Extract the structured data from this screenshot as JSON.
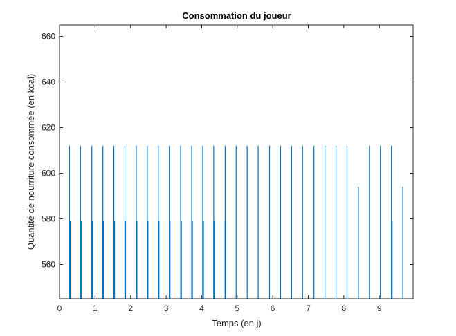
{
  "chart_data": {
    "type": "bar",
    "title": "Consommation du joueur",
    "xlabel": "Temps (en j)",
    "ylabel": "Quantité de nourriture consommée (en kcal)",
    "xlim": [
      0,
      9.95
    ],
    "ylim": [
      545,
      665
    ],
    "xticks": [
      0,
      1,
      2,
      3,
      4,
      5,
      6,
      7,
      8,
      9
    ],
    "yticks": [
      560,
      580,
      600,
      620,
      640,
      660
    ],
    "grid": false,
    "box": true,
    "bar_color": "#0072BD",
    "series": [
      {
        "x": [
          0.28,
          0.59,
          0.91,
          1.22,
          1.53,
          1.84,
          2.16,
          2.47,
          2.78,
          3.09,
          3.41,
          3.72,
          4.03,
          4.34,
          4.66,
          4.97,
          5.28,
          5.59,
          5.91,
          6.22,
          6.53,
          6.84,
          7.16,
          7.47,
          7.78,
          8.09,
          8.41,
          8.72,
          9.03,
          9.34,
          9.66
        ],
        "values": [
          612,
          612,
          612,
          612,
          612,
          612,
          612,
          612,
          612,
          612,
          612,
          612,
          612,
          612,
          612,
          612,
          612,
          612,
          612,
          612,
          612,
          612,
          612,
          612,
          612,
          612,
          594,
          612,
          612,
          612,
          594
        ]
      },
      {
        "x": [
          0.29,
          0.6,
          0.92,
          1.23,
          1.54,
          1.85,
          2.17,
          2.48,
          2.79,
          3.1,
          3.42,
          3.73,
          4.04,
          4.35,
          4.67,
          9.35
        ],
        "values": [
          579,
          579,
          579,
          579,
          579,
          579,
          579,
          579,
          579,
          579,
          579,
          579,
          579,
          579,
          579,
          579
        ]
      }
    ]
  }
}
